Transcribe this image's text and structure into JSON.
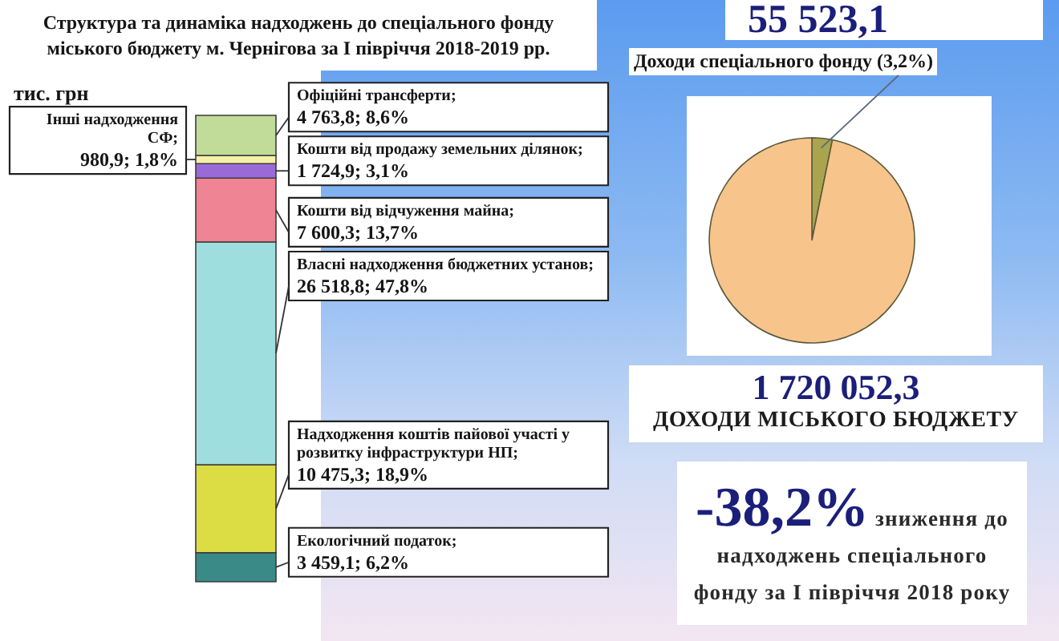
{
  "chart_data": [
    {
      "type": "bar",
      "title": "Структура та динаміка надходжень до спеціального фонду міського бюджету м. Чернігова за І півріччя 2018-2019 рр.",
      "ylabel": "тис. грн",
      "categories": [
        null
      ],
      "stacked": true,
      "tick_labels": false,
      "series": [
        {
          "name": "Екологічний податок;",
          "color": "#3a8a88",
          "values": [
            3459.1
          ],
          "value_labels": [
            "3 459,1; 6,2%"
          ]
        },
        {
          "name": "Надходження коштів пайової участі у розвитку інфраструктури НП;",
          "color": "#dcdc44",
          "values": [
            10475.3
          ],
          "value_labels": [
            "10 475,3; 18,9%"
          ]
        },
        {
          "name": "Власні надходження бюджетних установ;",
          "color": "#9fdede",
          "values": [
            26518.8
          ],
          "value_labels": [
            "26 518,8; 47,8%"
          ]
        },
        {
          "name": "Кошти від відчуження майна;",
          "color": "#ee8494",
          "values": [
            7600.3
          ],
          "value_labels": [
            "7 600,3; 13,7%"
          ]
        },
        {
          "name": "Кошти від продажу земельних ділянок;",
          "color": "#9a6ad8",
          "values": [
            1724.9
          ],
          "value_labels": [
            "1 724,9; 3,1%"
          ]
        },
        {
          "name": "Інші надходження СФ;",
          "color": "#f6f0a8",
          "values": [
            980.9
          ],
          "value_labels": [
            "980,9; 1,8%"
          ]
        },
        {
          "name": "Офіційні трансферти;",
          "color": "#c0dc98",
          "values": [
            4763.8
          ],
          "value_labels": [
            "4 763,8; 8,6%"
          ]
        }
      ]
    },
    {
      "type": "pie",
      "title": "55 523,1",
      "categories": [
        "Доходи спеціального фонду (3,2%)",
        null
      ],
      "values": [
        3.2,
        96.8
      ],
      "colors": [
        "#aaa44e",
        "#f7c48c"
      ]
    },
    {
      "type": "other",
      "title": "1 720 052,3",
      "subtitle": "ДОХОДИ МІСЬКОГО БЮДЖЕТУ"
    },
    {
      "type": "other",
      "title": "-38,2%",
      "subtitle": "зниження до надходжень спеціального фонду за І півріччя 2018 року"
    }
  ]
}
